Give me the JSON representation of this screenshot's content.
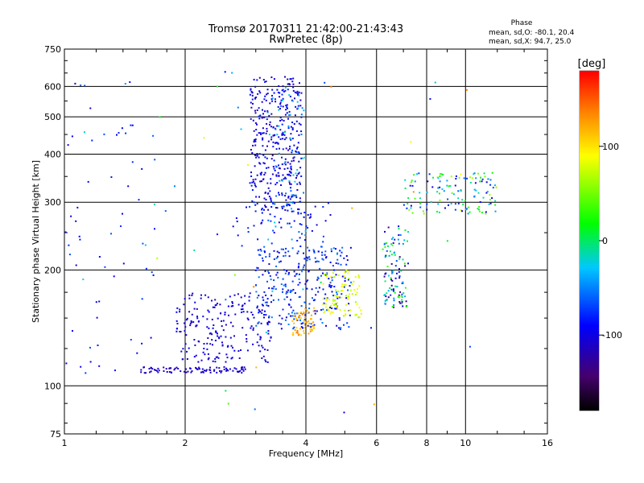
{
  "chart_data": {
    "type": "scatter",
    "title": "Tromsø 20170311 21:42:00-21:43:43",
    "subtitle": "RwPretec (8p)",
    "xlabel": "Frequency [MHz]",
    "ylabel": "Stationary phase Virtual Height [km]",
    "xscale": "log",
    "yscale": "log",
    "xlim": [
      1,
      16
    ],
    "ylim": [
      75,
      750
    ],
    "xticks": [
      {
        "value": 1,
        "label": "1"
      },
      {
        "value": 2,
        "label": "2"
      },
      {
        "value": 4,
        "label": "4"
      },
      {
        "value": 6,
        "label": "6"
      },
      {
        "value": 8,
        "label": "8"
      },
      {
        "value": 10,
        "label": "10"
      },
      {
        "value": 16,
        "label": "16"
      }
    ],
    "yticks": [
      {
        "value": 75,
        "label": "75"
      },
      {
        "value": 100,
        "label": "100"
      },
      {
        "value": 200,
        "label": "200"
      },
      {
        "value": 300,
        "label": "300"
      },
      {
        "value": 400,
        "label": "400"
      },
      {
        "value": 500,
        "label": "500"
      },
      {
        "value": 600,
        "label": "600"
      },
      {
        "value": 750,
        "label": "750"
      }
    ],
    "grid_x": [
      2,
      4,
      6,
      8,
      10
    ],
    "grid_y": [
      100,
      200,
      300,
      400,
      500,
      600
    ],
    "grid": true,
    "stats": {
      "heading": "Phase",
      "line_o": "mean, sd,O: -80.1, 20.4",
      "line_x": "mean, sd,X:  94.7, 25.0"
    },
    "colorbar": {
      "label": "[deg]",
      "min": -180,
      "max": 180,
      "ticks": [
        {
          "value": 100,
          "label": "100"
        },
        {
          "value": 0,
          "label": "0"
        },
        {
          "value": -100,
          "label": "-100"
        }
      ]
    },
    "clusters": [
      {
        "name": "E/F1 low trace",
        "x": [
          1.55,
          2.9
        ],
        "y": [
          108,
          112
        ],
        "phase": [
          -120,
          -100
        ],
        "n": 90
      },
      {
        "name": "Rising F1 trace",
        "x": [
          1.9,
          3.3
        ],
        "y": [
          115,
          175
        ],
        "phase": [
          -115,
          -90
        ],
        "n": 220
      },
      {
        "name": "F1 band",
        "x": [
          3.0,
          5.2
        ],
        "y": [
          140,
          230
        ],
        "phase": [
          -110,
          -50
        ],
        "n": 300
      },
      {
        "name": "Orange patch",
        "x": [
          3.7,
          4.2
        ],
        "y": [
          135,
          160
        ],
        "phase": [
          100,
          140
        ],
        "n": 60
      },
      {
        "name": "Yellow X-mode band",
        "x": [
          4.4,
          5.5
        ],
        "y": [
          150,
          200
        ],
        "phase": [
          60,
          100
        ],
        "n": 90
      },
      {
        "name": "F2 O-mode trace",
        "x": [
          2.9,
          3.9
        ],
        "y": [
          280,
          640
        ],
        "phase": [
          -120,
          -80
        ],
        "n": 380
      },
      {
        "name": "F2 upper blue",
        "x": [
          3.2,
          4.0
        ],
        "y": [
          240,
          600
        ],
        "phase": [
          -60,
          -20
        ],
        "n": 60
      },
      {
        "name": "Sparse mid",
        "x": [
          2.6,
          4.6
        ],
        "y": [
          230,
          300
        ],
        "phase": [
          -110,
          -70
        ],
        "n": 60
      },
      {
        "name": "High frequency group",
        "x": [
          6.2,
          7.2
        ],
        "y": [
          160,
          260
        ],
        "phase": [
          -140,
          40
        ],
        "n": 110
      },
      {
        "name": "High frequency echoes",
        "x": [
          7.0,
          12.0
        ],
        "y": [
          280,
          360
        ],
        "phase": [
          -110,
          70
        ],
        "n": 130
      },
      {
        "name": "Low frequency spread",
        "x": [
          1.0,
          1.7
        ],
        "y": [
          95,
          620
        ],
        "phase": [
          -110,
          -60
        ],
        "n": 60
      },
      {
        "name": "Isolated echoes",
        "x": [
          1.1,
          12.0
        ],
        "y": [
          80,
          700
        ],
        "phase": [
          -120,
          150
        ],
        "n": 50
      }
    ]
  }
}
